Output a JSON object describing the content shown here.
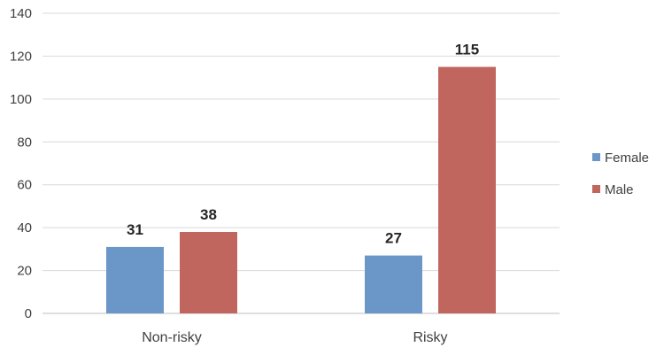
{
  "chart_data": {
    "type": "bar",
    "categories": [
      "Non-risky",
      "Risky"
    ],
    "series": [
      {
        "name": "Female",
        "values": [
          31,
          27
        ],
        "color": "#6b96c8"
      },
      {
        "name": "Male",
        "values": [
          38,
          115
        ],
        "color": "#c0665e"
      }
    ],
    "ylim": [
      0,
      140
    ],
    "yticks": [
      0,
      20,
      40,
      60,
      80,
      100,
      120,
      140
    ],
    "grid": true,
    "legend_position": "right",
    "show_data_labels": true,
    "title": "",
    "xlabel": "",
    "ylabel": ""
  }
}
